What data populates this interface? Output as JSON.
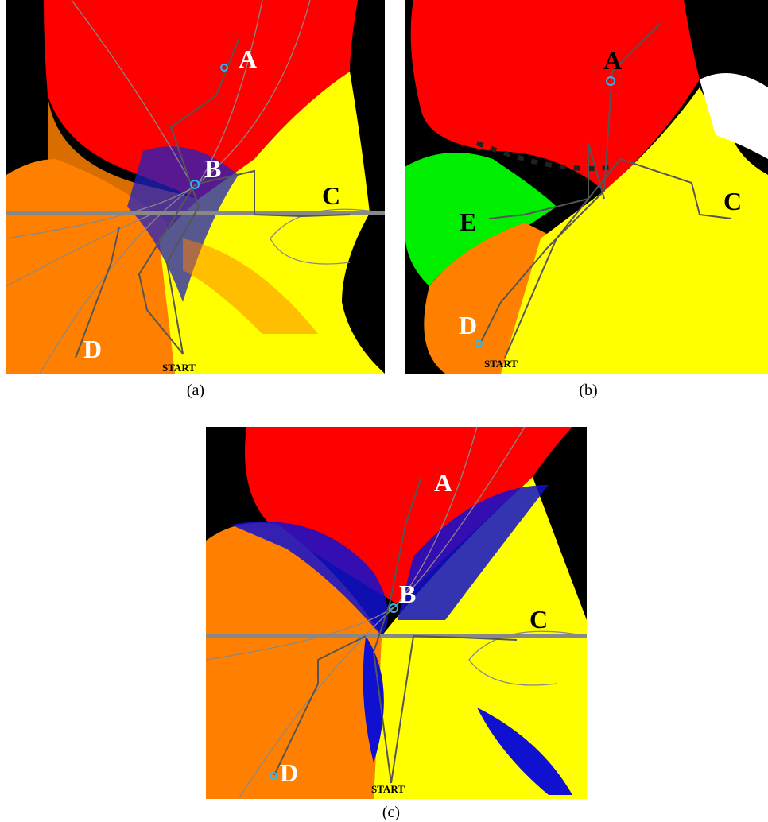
{
  "panels": [
    {
      "caption": "(a)",
      "labels": [
        "A",
        "B",
        "C",
        "D",
        "START"
      ]
    },
    {
      "caption": "(b)",
      "labels": [
        "A",
        "E",
        "C",
        "D",
        "START"
      ]
    },
    {
      "caption": "(c)",
      "labels": [
        "A",
        "B",
        "C",
        "D",
        "START"
      ]
    }
  ]
}
